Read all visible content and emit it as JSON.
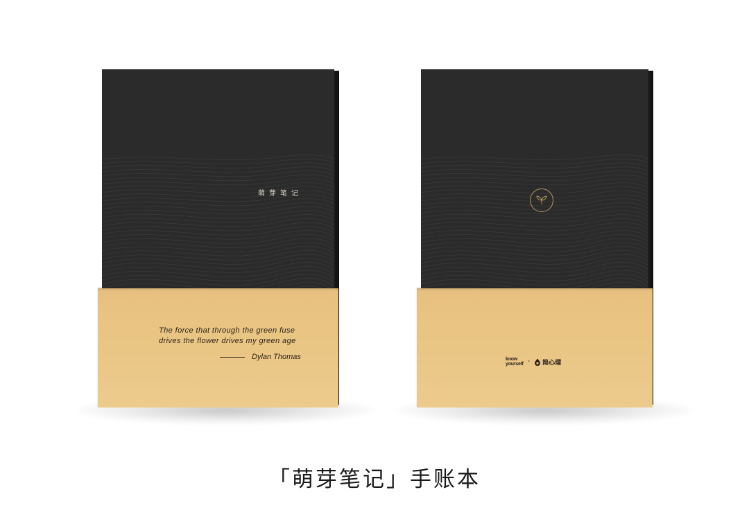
{
  "left_book": {
    "cover_title": "萌芽笔记",
    "quote_line1": "The force that through the green fuse",
    "quote_line2": "drives the flower drives my green age",
    "author": "Dylan Thomas"
  },
  "right_book": {
    "emblem": "leaf-sprout-icon",
    "logo_knowyourself_line1": "know",
    "logo_knowyourself_line2": "yourself",
    "logo_separator": "×",
    "logo_brand_name": "简心理"
  },
  "caption": "「萌芽笔记」手账本",
  "colors": {
    "cover": "#2b2b2b",
    "band": "#e9c583",
    "gold_line": "#b8995c",
    "text_dark": "#1a1a1a"
  }
}
